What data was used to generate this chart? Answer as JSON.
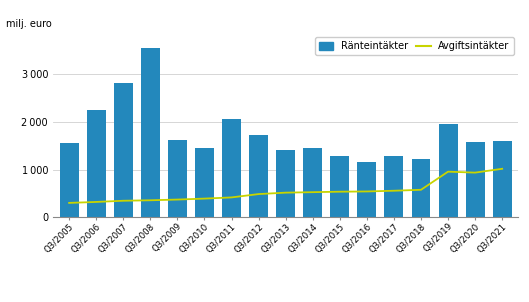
{
  "categories": [
    "Q3/2005",
    "Q3/2006",
    "Q3/2007",
    "Q3/2008",
    "Q3/2009",
    "Q3/2010",
    "Q3/2011",
    "Q3/2012",
    "Q3/2013",
    "Q3/2014",
    "Q3/2015",
    "Q3/2016",
    "Q3/2017",
    "Q3/2018",
    "Q3/2019",
    "Q3/2020",
    "Q3/2021"
  ],
  "ranteintakter": [
    1570,
    2250,
    2810,
    3560,
    1620,
    1460,
    2070,
    1720,
    1420,
    1460,
    1290,
    1160,
    1290,
    1230,
    1950,
    1590,
    1610
  ],
  "avgiftsintakter": [
    305,
    325,
    350,
    360,
    375,
    395,
    420,
    490,
    520,
    530,
    540,
    545,
    560,
    580,
    960,
    940,
    1020
  ],
  "bar_color": "#2388bc",
  "line_color": "#c8d400",
  "ylabel": "milj. euro",
  "ylim": [
    0,
    3800
  ],
  "yticks": [
    0,
    1000,
    2000,
    3000
  ],
  "legend_bar": "Ränteintäkter",
  "legend_line": "Avgiftsintäkter",
  "bg_color": "#ffffff",
  "grid_color": "#d0d0d0"
}
